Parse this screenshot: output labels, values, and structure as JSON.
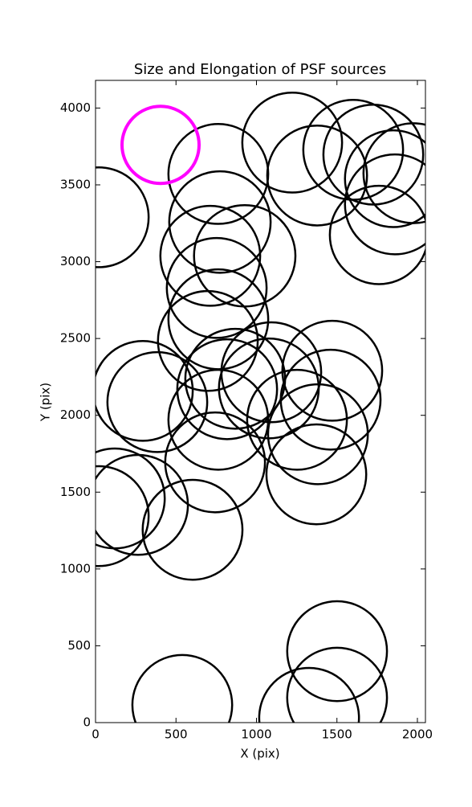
{
  "chart_data": {
    "type": "ellipse",
    "title": "Size and Elongation of PSF sources",
    "x_label": "X (pix)",
    "y_label": "Y (pix)",
    "xlim": [
      0,
      2050
    ],
    "ylim": [
      0,
      4180
    ],
    "xticks": [
      0,
      500,
      1000,
      1500,
      2000
    ],
    "yticks": [
      0,
      500,
      1000,
      1500,
      2000,
      2500,
      3000,
      3500,
      4000
    ],
    "series": [
      {
        "color": "#000000",
        "line_width": 2.5,
        "x": [
          20,
          763,
          1222,
          1601,
          1726,
          1975,
          1850,
          1377,
          1860,
          1761,
          773,
          713,
          927,
          753,
          763,
          698,
          868,
          1092,
          1471,
          1461,
          294,
          384,
          818,
          1077,
          1252,
          763,
          1382,
          743,
          1372,
          120,
          264,
          20,
          603,
          1501,
          1501,
          539,
          1327
        ],
        "y": [
          3289,
          3571,
          3775,
          3728,
          3697,
          3576,
          3540,
          3561,
          3373,
          3174,
          3258,
          3038,
          3038,
          2829,
          2625,
          2484,
          2238,
          2280,
          2290,
          2102,
          2159,
          2086,
          2170,
          2175,
          1971,
          1971,
          1877,
          1694,
          1616,
          1459,
          1417,
          1344,
          1255,
          465,
          162,
          115,
          31
        ],
        "width": [
          620,
          620,
          620,
          620,
          620,
          620,
          600,
          620,
          620,
          610,
          630,
          620,
          630,
          620,
          620,
          620,
          620,
          620,
          620,
          620,
          620,
          620,
          620,
          620,
          620,
          620,
          620,
          620,
          620,
          620,
          620,
          620,
          620,
          620,
          620,
          620,
          620
        ],
        "height": [
          650,
          650,
          650,
          650,
          650,
          650,
          630,
          650,
          650,
          640,
          660,
          650,
          660,
          650,
          650,
          650,
          650,
          650,
          650,
          650,
          650,
          650,
          650,
          650,
          650,
          650,
          650,
          650,
          650,
          650,
          650,
          650,
          650,
          650,
          650,
          650,
          650
        ]
      },
      {
        "color": "#ff00ff",
        "line_width": 4,
        "x": [
          404
        ],
        "y": [
          3760
        ],
        "width": [
          479
        ],
        "height": [
          502
        ]
      }
    ]
  }
}
